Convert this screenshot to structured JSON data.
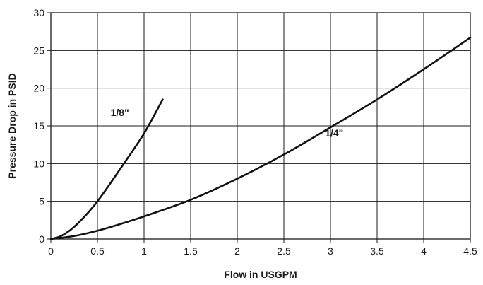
{
  "chart_data": {
    "type": "line",
    "title": "",
    "xlabel": "Flow in USGPM",
    "ylabel": "Pressure Drop in PSID",
    "xlim": [
      0,
      4.5
    ],
    "ylim": [
      0,
      30
    ],
    "xticks": [
      0,
      0.5,
      1,
      1.5,
      2,
      2.5,
      3,
      3.5,
      4,
      4.5
    ],
    "xtick_labels": [
      "0",
      "0.5",
      "1",
      "1.5",
      "2",
      "2.5",
      "3",
      "3.5",
      "4",
      "4.5"
    ],
    "yticks": [
      0,
      5,
      10,
      15,
      20,
      25,
      30
    ],
    "ytick_labels": [
      "0",
      "5",
      "10",
      "15",
      "20",
      "25",
      "30"
    ],
    "grid": true,
    "series": [
      {
        "name": "1/8\"",
        "x": [
          0,
          0.1,
          0.2,
          0.3,
          0.4,
          0.5,
          0.6,
          0.7,
          0.8,
          0.9,
          1.0,
          1.1,
          1.2
        ],
        "y": [
          0,
          0.35,
          1.1,
          2.2,
          3.5,
          5.0,
          6.7,
          8.5,
          10.3,
          12.1,
          14.0,
          16.2,
          18.5
        ]
      },
      {
        "name": "1/4\"",
        "x": [
          0,
          0.25,
          0.5,
          0.75,
          1.0,
          1.5,
          2.0,
          2.5,
          3.0,
          3.5,
          4.0,
          4.5
        ],
        "y": [
          0,
          0.4,
          1.1,
          2.0,
          3.0,
          5.2,
          8.0,
          11.2,
          14.8,
          18.5,
          22.5,
          26.7
        ]
      }
    ],
    "annotations": [
      {
        "text": "1/8\"",
        "x": 0.74,
        "y": 16.3
      },
      {
        "text": "1/4\"",
        "x": 3.04,
        "y": 13.6
      }
    ],
    "colors": {
      "line": "#111111",
      "grid": "#1a1a1a"
    }
  }
}
